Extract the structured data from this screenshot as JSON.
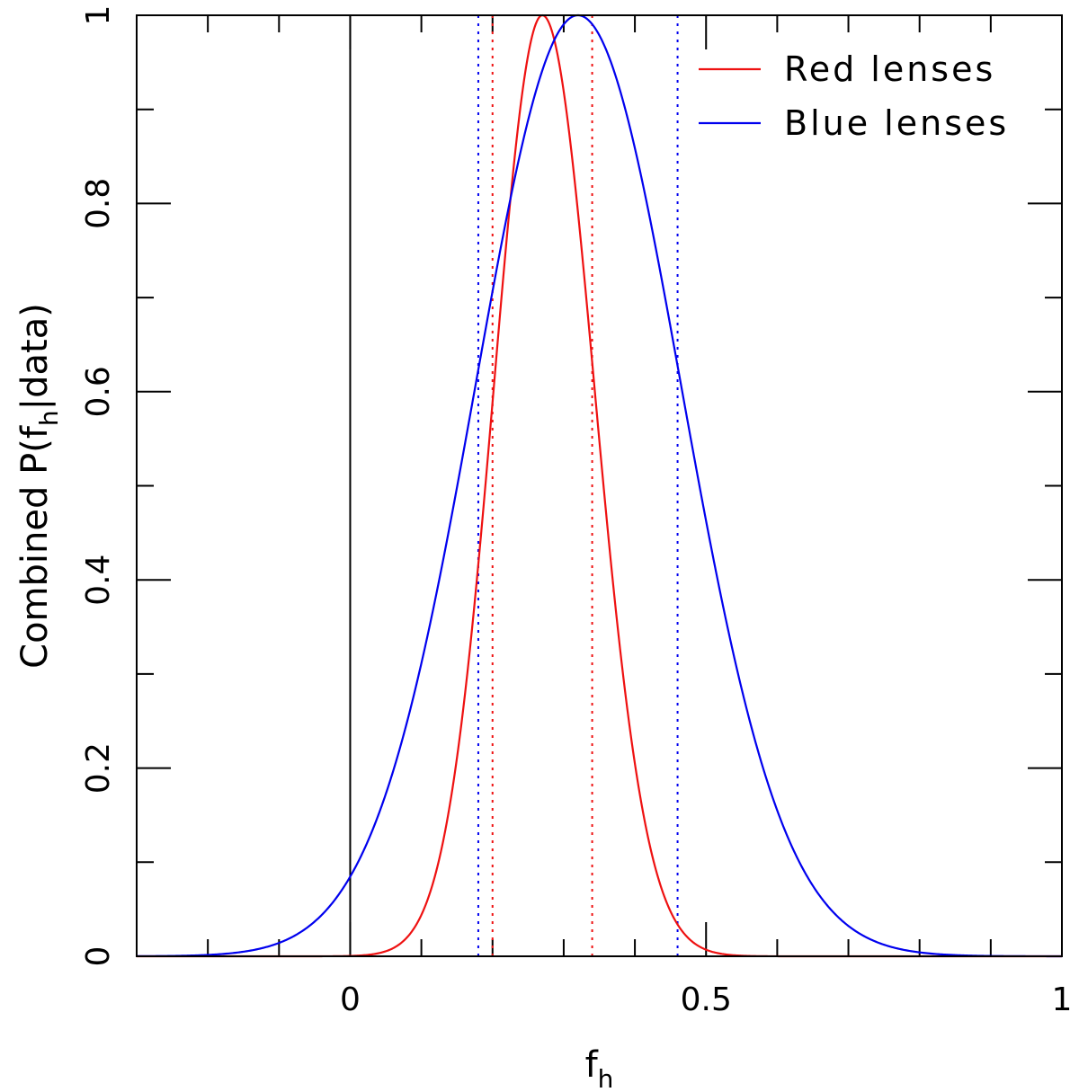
{
  "chart_data": {
    "type": "line",
    "xlabel": "f",
    "xlabel_sub": "h",
    "ylabel_pre": "Combined P(f",
    "ylabel_sub": "h",
    "ylabel_post": "|data)",
    "xlim": [
      -0.3,
      1.0
    ],
    "ylim": [
      0,
      1.0
    ],
    "x_ticks": [
      {
        "value": 0,
        "label": "0"
      },
      {
        "value": 0.5,
        "label": "0.5"
      },
      {
        "value": 1,
        "label": "1"
      }
    ],
    "x_minor_step": 0.1,
    "y_ticks": [
      {
        "value": 0,
        "label": "0"
      },
      {
        "value": 0.2,
        "label": "0.2"
      },
      {
        "value": 0.4,
        "label": "0.4"
      },
      {
        "value": 0.6,
        "label": "0.6"
      },
      {
        "value": 0.8,
        "label": "0.8"
      },
      {
        "value": 1,
        "label": "1"
      }
    ],
    "y_minor_step": 0.1,
    "grid": false,
    "legend_position": "top-right",
    "reference_line_x": 0,
    "series": [
      {
        "name": "Red lenses",
        "color": "#ee1111",
        "shape": "gaussian",
        "peak_x": 0.27,
        "sigma_left": 0.068,
        "sigma_right": 0.073,
        "bounds": [
          0.2,
          0.34
        ]
      },
      {
        "name": "Blue lenses",
        "color": "#0000ee",
        "shape": "gaussian",
        "peak_x": 0.32,
        "sigma_left": 0.144,
        "sigma_right": 0.145,
        "bounds": [
          0.18,
          0.46
        ]
      }
    ]
  }
}
